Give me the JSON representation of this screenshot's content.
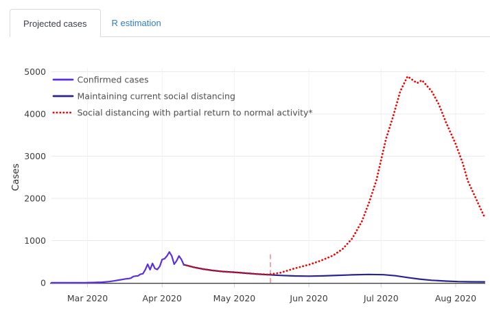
{
  "tabs": [
    {
      "label": "Projected cases",
      "active": true
    },
    {
      "label": "R estimation",
      "active": false
    }
  ],
  "colors": {
    "active_tab_text": "#3d4148",
    "inactive_tab_text": "#2f7ec7",
    "tab_border": "#d9d9d9",
    "axis_line": "#3f3f3f",
    "grid_horizontal": "#e8e8e8",
    "grid_vertical": "#f1f1f1",
    "tick_mark": "#cfcfcf",
    "tick_label": "#3c3c3c",
    "legend_text": "#4f4f4f",
    "marker_line": "#ef8f8f"
  },
  "chart_data": {
    "type": "line",
    "title": "",
    "xlabel": "",
    "ylabel": "Cases",
    "ylim": [
      0,
      5000
    ],
    "yticks": [
      0,
      1000,
      2000,
      3000,
      4000,
      5000
    ],
    "xlim": [
      "2020-02-15",
      "2020-08-13"
    ],
    "xticks": [
      {
        "date": "2020-03-01",
        "label": "Mar 2020"
      },
      {
        "date": "2020-04-01",
        "label": "Apr 2020"
      },
      {
        "date": "2020-05-01",
        "label": "May 2020"
      },
      {
        "date": "2020-06-01",
        "label": "Jun 2020"
      },
      {
        "date": "2020-07-01",
        "label": "Jul 2020"
      },
      {
        "date": "2020-08-01",
        "label": "Aug 2020"
      }
    ],
    "grid": true,
    "legend_position": "top-left-inside",
    "annotations": {
      "today_marker": {
        "date": "2020-05-16",
        "style": "dashed-vertical",
        "color": "#ef8f8f",
        "value_top": 750
      }
    },
    "series": [
      {
        "name": "Confirmed cases",
        "color": "#5b2ee0",
        "style": "solid",
        "points": [
          [
            "2020-02-15",
            2
          ],
          [
            "2020-02-22",
            2
          ],
          [
            "2020-02-29",
            4
          ],
          [
            "2020-03-04",
            8
          ],
          [
            "2020-03-07",
            15
          ],
          [
            "2020-03-10",
            30
          ],
          [
            "2020-03-12",
            45
          ],
          [
            "2020-03-14",
            65
          ],
          [
            "2020-03-16",
            85
          ],
          [
            "2020-03-17",
            95
          ],
          [
            "2020-03-18",
            100
          ],
          [
            "2020-03-19",
            110
          ],
          [
            "2020-03-20",
            150
          ],
          [
            "2020-03-21",
            160
          ],
          [
            "2020-03-22",
            165
          ],
          [
            "2020-03-23",
            205
          ],
          [
            "2020-03-24",
            215
          ],
          [
            "2020-03-25",
            310
          ],
          [
            "2020-03-26",
            440
          ],
          [
            "2020-03-27",
            310
          ],
          [
            "2020-03-28",
            460
          ],
          [
            "2020-03-29",
            340
          ],
          [
            "2020-03-30",
            315
          ],
          [
            "2020-03-31",
            390
          ],
          [
            "2020-04-01",
            555
          ],
          [
            "2020-04-02",
            570
          ],
          [
            "2020-04-03",
            635
          ],
          [
            "2020-04-04",
            730
          ],
          [
            "2020-04-05",
            635
          ],
          [
            "2020-04-06",
            440
          ],
          [
            "2020-04-07",
            520
          ],
          [
            "2020-04-08",
            635
          ],
          [
            "2020-04-09",
            555
          ],
          [
            "2020-04-10",
            430
          ]
        ]
      },
      {
        "name": "Maintaining current social distancing",
        "color": "#27238f",
        "style": "solid",
        "points": [
          [
            "2020-04-10",
            430
          ],
          [
            "2020-04-14",
            370
          ],
          [
            "2020-04-18",
            325
          ],
          [
            "2020-04-22",
            292
          ],
          [
            "2020-04-26",
            268
          ],
          [
            "2020-05-01",
            250
          ],
          [
            "2020-05-06",
            228
          ],
          [
            "2020-05-10",
            210
          ],
          [
            "2020-05-15",
            192
          ],
          [
            "2020-05-20",
            175
          ],
          [
            "2020-05-26",
            162
          ],
          [
            "2020-06-01",
            158
          ],
          [
            "2020-06-07",
            164
          ],
          [
            "2020-06-13",
            177
          ],
          [
            "2020-06-19",
            189
          ],
          [
            "2020-06-26",
            198
          ],
          [
            "2020-07-02",
            192
          ],
          [
            "2020-07-07",
            168
          ],
          [
            "2020-07-12",
            125
          ],
          [
            "2020-07-17",
            88
          ],
          [
            "2020-07-22",
            60
          ],
          [
            "2020-07-28",
            40
          ],
          [
            "2020-08-02",
            30
          ],
          [
            "2020-08-07",
            25
          ],
          [
            "2020-08-13",
            22
          ]
        ]
      },
      {
        "name": "Social distancing with partial return to normal activity*",
        "color": "#f50000",
        "style": "dotted",
        "points": [
          [
            "2020-04-10",
            430
          ],
          [
            "2020-04-14",
            370
          ],
          [
            "2020-04-18",
            325
          ],
          [
            "2020-04-22",
            292
          ],
          [
            "2020-04-26",
            268
          ],
          [
            "2020-05-01",
            250
          ],
          [
            "2020-05-06",
            228
          ],
          [
            "2020-05-10",
            210
          ],
          [
            "2020-05-15",
            195
          ],
          [
            "2020-05-20",
            235
          ],
          [
            "2020-05-26",
            340
          ],
          [
            "2020-06-01",
            430
          ],
          [
            "2020-06-06",
            525
          ],
          [
            "2020-06-11",
            645
          ],
          [
            "2020-06-15",
            800
          ],
          [
            "2020-06-19",
            1050
          ],
          [
            "2020-06-23",
            1450
          ],
          [
            "2020-06-26",
            1900
          ],
          [
            "2020-06-29",
            2420
          ],
          [
            "2020-07-03",
            3400
          ],
          [
            "2020-07-06",
            3940
          ],
          [
            "2020-07-09",
            4540
          ],
          [
            "2020-07-12",
            4890
          ],
          [
            "2020-07-16",
            4730
          ],
          [
            "2020-07-18",
            4800
          ],
          [
            "2020-07-22",
            4540
          ],
          [
            "2020-07-25",
            4230
          ],
          [
            "2020-07-28",
            3800
          ],
          [
            "2020-08-01",
            3290
          ],
          [
            "2020-08-04",
            2830
          ],
          [
            "2020-08-06",
            2420
          ],
          [
            "2020-08-09",
            2050
          ],
          [
            "2020-08-11",
            1800
          ],
          [
            "2020-08-13",
            1560
          ]
        ]
      }
    ]
  }
}
